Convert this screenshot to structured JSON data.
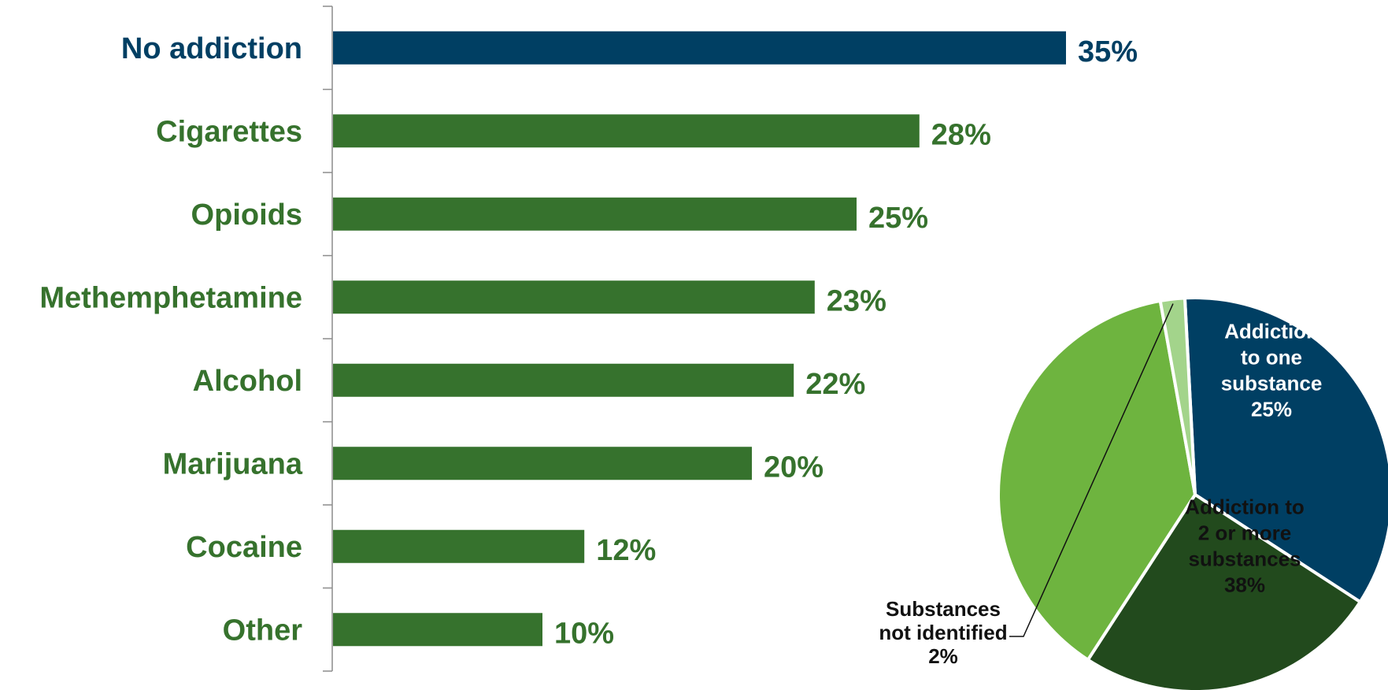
{
  "chart_data": [
    {
      "type": "bar",
      "orientation": "horizontal",
      "categories": [
        "No addiction",
        "Cigarettes",
        "Opioids",
        "Methemphetamine",
        "Alcohol",
        "Marijuana",
        "Cocaine",
        "Other"
      ],
      "values": [
        35,
        28,
        25,
        23,
        22,
        20,
        12,
        10
      ],
      "value_labels": [
        "35%",
        "28%",
        "25%",
        "23%",
        "22%",
        "20%",
        "12%",
        "10%"
      ],
      "value_unit": "%",
      "xlim": [
        0,
        35
      ],
      "grid": false,
      "colors": {
        "highlight": "#003f63",
        "default": "#36722d",
        "axis": "#8c8c8c"
      },
      "highlight_index": 0
    },
    {
      "type": "pie",
      "slices": [
        {
          "label_lines": [
            "No addiction",
            "35%"
          ],
          "value": 35,
          "color": "#003f63",
          "text_color": "#ffffff"
        },
        {
          "label_lines": [
            "Addiction",
            "to one",
            "substance",
            "25%"
          ],
          "value": 25,
          "color": "#224a1d",
          "text_color": "#ffffff"
        },
        {
          "label_lines": [
            "Addiction to",
            "2 or more",
            "substances",
            "38%"
          ],
          "value": 38,
          "color": "#6eb43f",
          "text_color": "#111111"
        },
        {
          "label_lines": [
            "Substances",
            "not identified",
            "2%"
          ],
          "value": 2,
          "color": "#a3d48b",
          "text_color": "#111111",
          "label_outside": true
        }
      ],
      "start_angle_deg": -3,
      "direction": "clockwise",
      "slice_border_color": "#ffffff"
    }
  ]
}
